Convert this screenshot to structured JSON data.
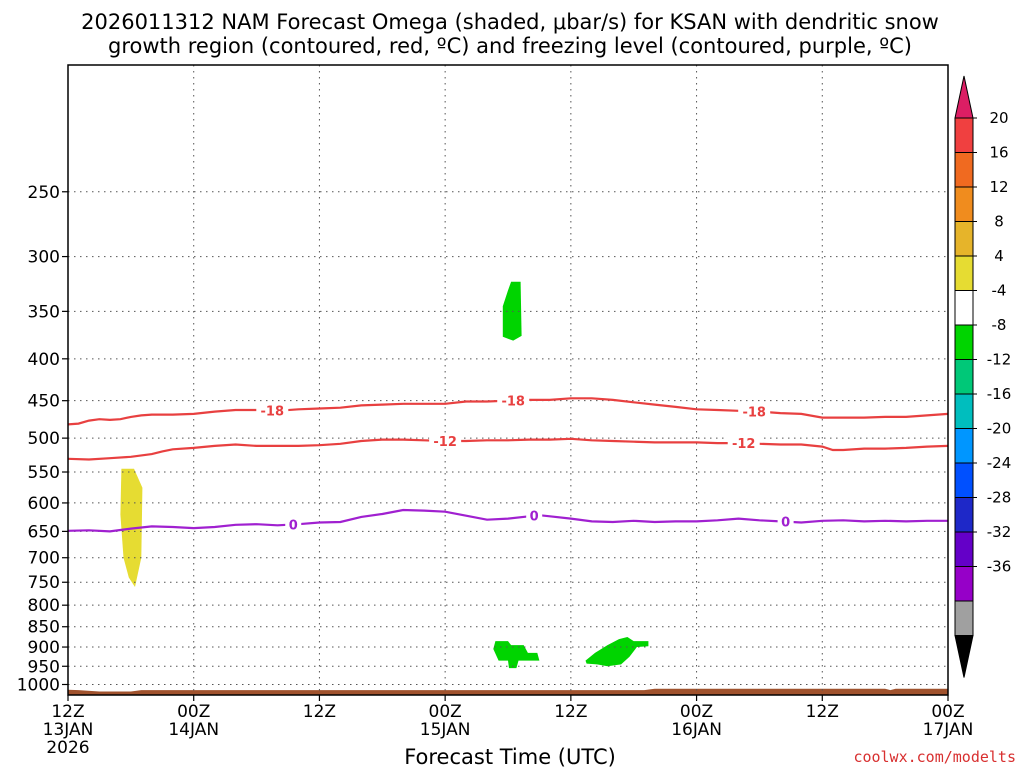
{
  "chart_data": {
    "type": "contour",
    "title_line1": "2026011312 NAM Forecast Omega (shaded, μbar/s) for KSAN with dendritic snow",
    "title_line2": "growth region (contoured, red, ºC) and freezing level (contoured, purple, ºC)",
    "xlabel": "Forecast Time (UTC)",
    "credit": "coolwx.com/modelts",
    "x_unit": "forecast hour",
    "xlim": [
      0,
      84
    ],
    "ylim_hpa": [
      1030,
      175
    ],
    "x_ticks": [
      {
        "hour": 0,
        "line1": "12Z",
        "line2": "13JAN",
        "line3": "2026"
      },
      {
        "hour": 12,
        "line1": "00Z",
        "line2": "14JAN",
        "line3": ""
      },
      {
        "hour": 24,
        "line1": "12Z",
        "line2": "",
        "line3": ""
      },
      {
        "hour": 36,
        "line1": "00Z",
        "line2": "15JAN",
        "line3": ""
      },
      {
        "hour": 48,
        "line1": "12Z",
        "line2": "",
        "line3": ""
      },
      {
        "hour": 60,
        "line1": "00Z",
        "line2": "16JAN",
        "line3": ""
      },
      {
        "hour": 72,
        "line1": "12Z",
        "line2": "",
        "line3": ""
      },
      {
        "hour": 84,
        "line1": "00Z",
        "line2": "17JAN",
        "line3": ""
      }
    ],
    "y_ticks": [
      250,
      300,
      350,
      400,
      450,
      500,
      550,
      600,
      650,
      700,
      750,
      800,
      850,
      900,
      950,
      1000
    ],
    "grid": true,
    "contours": [
      {
        "label": "-18",
        "color": "#e84040",
        "points": [
          [
            0,
            481
          ],
          [
            1,
            480
          ],
          [
            2,
            476
          ],
          [
            3,
            474
          ],
          [
            4,
            475
          ],
          [
            5,
            474
          ],
          [
            6,
            471
          ],
          [
            7,
            469
          ],
          [
            8,
            468
          ],
          [
            10,
            468
          ],
          [
            12,
            467
          ],
          [
            14,
            464
          ],
          [
            16,
            462
          ],
          [
            18,
            462
          ],
          [
            20,
            463
          ],
          [
            22,
            461
          ],
          [
            24,
            460
          ],
          [
            26,
            459
          ],
          [
            28,
            456
          ],
          [
            30,
            455
          ],
          [
            32,
            454
          ],
          [
            34,
            454
          ],
          [
            36,
            454
          ],
          [
            38,
            451
          ],
          [
            40,
            451
          ],
          [
            42,
            450
          ],
          [
            44,
            449
          ],
          [
            46,
            449
          ],
          [
            48,
            447
          ],
          [
            50,
            447
          ],
          [
            52,
            449
          ],
          [
            54,
            452
          ],
          [
            56,
            455
          ],
          [
            58,
            458
          ],
          [
            60,
            461
          ],
          [
            62,
            462
          ],
          [
            64,
            463
          ],
          [
            66,
            464
          ],
          [
            68,
            466
          ],
          [
            70,
            467
          ],
          [
            72,
            472
          ],
          [
            74,
            472
          ],
          [
            76,
            472
          ],
          [
            78,
            471
          ],
          [
            80,
            471
          ],
          [
            82,
            469
          ],
          [
            84,
            467
          ]
        ],
        "label_hours": [
          19.5,
          42.5,
          65.5
        ]
      },
      {
        "label": "-12",
        "color": "#e84040",
        "points": [
          [
            0,
            530
          ],
          [
            2,
            531
          ],
          [
            4,
            529
          ],
          [
            6,
            527
          ],
          [
            8,
            523
          ],
          [
            9,
            519
          ],
          [
            10,
            516
          ],
          [
            12,
            514
          ],
          [
            14,
            511
          ],
          [
            16,
            509
          ],
          [
            18,
            511
          ],
          [
            20,
            511
          ],
          [
            22,
            511
          ],
          [
            24,
            510
          ],
          [
            26,
            508
          ],
          [
            28,
            504
          ],
          [
            30,
            502
          ],
          [
            32,
            502
          ],
          [
            34,
            503
          ],
          [
            36,
            504
          ],
          [
            38,
            504
          ],
          [
            40,
            503
          ],
          [
            42,
            503
          ],
          [
            44,
            502
          ],
          [
            46,
            502
          ],
          [
            48,
            501
          ],
          [
            50,
            503
          ],
          [
            52,
            504
          ],
          [
            54,
            505
          ],
          [
            56,
            506
          ],
          [
            58,
            506
          ],
          [
            60,
            506
          ],
          [
            62,
            507
          ],
          [
            64,
            507
          ],
          [
            66,
            508
          ],
          [
            68,
            509
          ],
          [
            70,
            509
          ],
          [
            72,
            512
          ],
          [
            73,
            517
          ],
          [
            74,
            517
          ],
          [
            76,
            515
          ],
          [
            78,
            515
          ],
          [
            80,
            514
          ],
          [
            82,
            512
          ],
          [
            84,
            511
          ]
        ],
        "label_hours": [
          36,
          64.5
        ]
      },
      {
        "label": "0",
        "color": "#a020d0",
        "points": [
          [
            0,
            649
          ],
          [
            2,
            648
          ],
          [
            4,
            650
          ],
          [
            6,
            645
          ],
          [
            8,
            641
          ],
          [
            10,
            642
          ],
          [
            12,
            644
          ],
          [
            14,
            642
          ],
          [
            16,
            638
          ],
          [
            18,
            637
          ],
          [
            20,
            639
          ],
          [
            22,
            637
          ],
          [
            24,
            634
          ],
          [
            26,
            633
          ],
          [
            28,
            624
          ],
          [
            30,
            619
          ],
          [
            32,
            612
          ],
          [
            34,
            613
          ],
          [
            36,
            615
          ],
          [
            38,
            622
          ],
          [
            40,
            629
          ],
          [
            42,
            627
          ],
          [
            44,
            623
          ],
          [
            45,
            621
          ],
          [
            46,
            623
          ],
          [
            48,
            627
          ],
          [
            50,
            632
          ],
          [
            52,
            633
          ],
          [
            54,
            631
          ],
          [
            56,
            633
          ],
          [
            58,
            632
          ],
          [
            60,
            632
          ],
          [
            62,
            630
          ],
          [
            64,
            627
          ],
          [
            66,
            630
          ],
          [
            68,
            632
          ],
          [
            70,
            634
          ],
          [
            72,
            631
          ],
          [
            74,
            630
          ],
          [
            76,
            632
          ],
          [
            78,
            631
          ],
          [
            80,
            632
          ],
          [
            82,
            631
          ],
          [
            84,
            631
          ]
        ],
        "label_hours": [
          21.5,
          44.5,
          68.5
        ]
      }
    ],
    "shaded_regions": [
      {
        "value_range": [
          4,
          8
        ],
        "color": "#e6dc32",
        "points": [
          [
            5.1,
            545
          ],
          [
            6.3,
            545
          ],
          [
            7.1,
            575
          ],
          [
            7.0,
            700
          ],
          [
            6.4,
            760
          ],
          [
            5.8,
            740
          ],
          [
            5.3,
            700
          ],
          [
            5.0,
            620
          ]
        ]
      },
      {
        "value_range": [
          -8,
          -4
        ],
        "color": "#00d400",
        "points": [
          [
            42.3,
            322
          ],
          [
            43.2,
            322
          ],
          [
            43.3,
            375
          ],
          [
            42.5,
            380
          ],
          [
            41.5,
            376
          ],
          [
            41.5,
            345
          ],
          [
            42.0,
            330
          ]
        ]
      },
      {
        "value_range": [
          -8,
          -4
        ],
        "color": "#00d400",
        "points": [
          [
            40.8,
            885
          ],
          [
            42.0,
            885
          ],
          [
            42.3,
            895
          ],
          [
            43.5,
            895
          ],
          [
            43.9,
            915
          ],
          [
            44.8,
            915
          ],
          [
            45.0,
            935
          ],
          [
            43.0,
            935
          ],
          [
            42.8,
            955
          ],
          [
            42.1,
            955
          ],
          [
            42.0,
            935
          ],
          [
            41.1,
            935
          ],
          [
            40.6,
            905
          ]
        ]
      },
      {
        "value_range": [
          -8,
          -4
        ],
        "color": "#00d400",
        "points": [
          [
            49.4,
            935
          ],
          [
            50.3,
            915
          ],
          [
            51.5,
            895
          ],
          [
            52.6,
            880
          ],
          [
            53.4,
            875
          ],
          [
            54.0,
            885
          ],
          [
            55.4,
            885
          ],
          [
            55.4,
            898
          ],
          [
            54.3,
            900
          ],
          [
            53.6,
            925
          ],
          [
            52.8,
            945
          ],
          [
            51.5,
            950
          ],
          [
            50.5,
            945
          ],
          [
            49.5,
            943
          ]
        ]
      }
    ],
    "terrain": {
      "color": "#a0522d",
      "top_hpa": [
        [
          0,
          1015
        ],
        [
          1,
          1016
        ],
        [
          3,
          1020
        ],
        [
          6,
          1020
        ],
        [
          7,
          1016
        ],
        [
          55,
          1016
        ],
        [
          56,
          1012
        ],
        [
          78,
          1012
        ],
        [
          78.5,
          1016
        ],
        [
          79,
          1012
        ],
        [
          84,
          1012
        ]
      ]
    },
    "colorbar": {
      "labels": [
        "20",
        "16",
        "12",
        "8",
        "4",
        "-4",
        "-8",
        "-12",
        "-16",
        "-20",
        "-24",
        "-28",
        "-32",
        "-36"
      ],
      "colors": [
        "#dc1e64",
        "#f04040",
        "#f06a20",
        "#f08c1e",
        "#e6b42a",
        "#e6dc32",
        "#ffffff",
        "#00d400",
        "#00c878",
        "#00bebe",
        "#0096ff",
        "#0050ff",
        "#1e28c8",
        "#6400c8",
        "#9600c8",
        "#a0a0a0",
        "#000000"
      ]
    }
  }
}
